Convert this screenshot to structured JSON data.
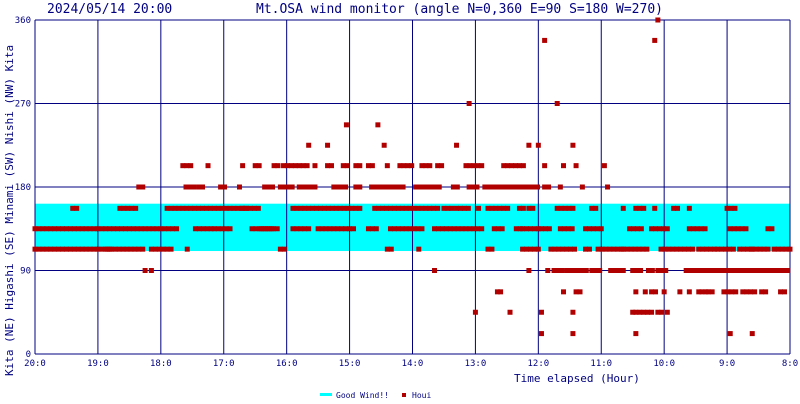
{
  "chart_data": {
    "type": "scatter",
    "timestamp": "2024/05/14 20:00",
    "title": "Mt.OSA wind monitor (angle N=0,360 E=90 S=180 W=270)",
    "xlabel": "Time elapsed (Hour)",
    "ylabel_rotated": "Kita (NE) Higashi (SE) Minami (SW) Nishi (NW) Kita",
    "x_tick_labels": [
      "20:0",
      "19:0",
      "18:0",
      "17:0",
      "16:0",
      "15:0",
      "14:0",
      "13:0",
      "12:0",
      "11:0",
      "10:0",
      "9:0",
      "8:0"
    ],
    "y_tick_labels": [
      "0",
      "90",
      "180",
      "270",
      "360"
    ],
    "xlim_hours_elapsed": [
      0,
      12
    ],
    "ylim": [
      0,
      360
    ],
    "grid": true,
    "good_wind_band": {
      "label": "Good Wind!!",
      "from": 111,
      "to": 162,
      "color": "#00ffff"
    },
    "legend": {
      "placement": "bottom-center",
      "items": [
        {
          "label": "Good Wind!!",
          "color": "#00ffff"
        },
        {
          "label": "Houi",
          "color": "#b00000"
        }
      ]
    },
    "series": [
      {
        "name": "Houi",
        "color": "#b00000",
        "rows": [
          {
            "y": 113,
            "ranges": [
              [
                0.0,
                1.2
              ],
              [
                1.15,
                1.75
              ],
              [
                1.85,
                2.2
              ],
              [
                2.42,
                2.47
              ],
              [
                3.9,
                4.0
              ],
              [
                5.6,
                5.7
              ],
              [
                6.1,
                6.15
              ],
              [
                7.2,
                7.3
              ],
              [
                7.75,
                8.0
              ],
              [
                8.2,
                8.6
              ],
              [
                8.75,
                8.85
              ],
              [
                8.95,
                9.35
              ],
              [
                9.35,
                9.75
              ],
              [
                9.95,
                10.45
              ],
              [
                10.55,
                10.8
              ],
              [
                10.85,
                11.1
              ],
              [
                11.2,
                11.4
              ],
              [
                11.4,
                11.65
              ],
              [
                11.75,
                12.0
              ]
            ]
          },
          {
            "y": 135,
            "ranges": [
              [
                0.0,
                2.3
              ],
              [
                2.55,
                2.8
              ],
              [
                2.85,
                3.15
              ],
              [
                3.45,
                3.8
              ],
              [
                3.6,
                3.85
              ],
              [
                4.1,
                4.4
              ],
              [
                4.5,
                5.1
              ],
              [
                5.3,
                5.45
              ],
              [
                5.65,
                6.15
              ],
              [
                6.35,
                7.1
              ],
              [
                7.3,
                7.45
              ],
              [
                7.65,
                7.75
              ],
              [
                7.75,
                8.0
              ],
              [
                8.05,
                8.2
              ],
              [
                8.35,
                8.55
              ],
              [
                8.75,
                9.05
              ],
              [
                9.45,
                9.65
              ],
              [
                9.8,
                10.05
              ],
              [
                10.4,
                10.7
              ],
              [
                11.05,
                11.3
              ],
              [
                11.65,
                11.75
              ]
            ]
          },
          {
            "y": 157,
            "ranges": [
              [
                0.6,
                0.7
              ],
              [
                1.35,
                1.55
              ],
              [
                1.6,
                1.65
              ],
              [
                2.1,
                3.4
              ],
              [
                3.3,
                3.6
              ],
              [
                4.1,
                5.2
              ],
              [
                5.4,
                6.1
              ],
              [
                6.15,
                6.4
              ],
              [
                6.5,
                6.65
              ],
              [
                6.7,
                6.9
              ],
              [
                7.05,
                7.1
              ],
              [
                7.2,
                7.55
              ],
              [
                7.7,
                7.8
              ],
              [
                7.85,
                7.95
              ],
              [
                8.3,
                8.55
              ],
              [
                8.85,
                8.95
              ],
              [
                9.35,
                9.4
              ],
              [
                9.55,
                9.7
              ],
              [
                9.85,
                9.9
              ],
              [
                10.15,
                10.25
              ],
              [
                10.4,
                10.45
              ],
              [
                11.0,
                11.15
              ]
            ]
          },
          {
            "y": 180,
            "ranges": [
              [
                1.65,
                1.75
              ],
              [
                2.4,
                2.55
              ],
              [
                2.6,
                2.7
              ],
              [
                2.95,
                3.05
              ],
              [
                3.25,
                3.3
              ],
              [
                3.65,
                3.8
              ],
              [
                3.9,
                4.1
              ],
              [
                4.2,
                4.45
              ],
              [
                4.75,
                4.95
              ],
              [
                5.1,
                5.2
              ],
              [
                5.35,
                5.85
              ],
              [
                6.05,
                6.45
              ],
              [
                6.65,
                6.75
              ],
              [
                6.9,
                7.05
              ],
              [
                7.15,
                7.65
              ],
              [
                7.7,
                7.85
              ],
              [
                7.8,
                8.0
              ],
              [
                8.1,
                8.2
              ],
              [
                8.35,
                8.4
              ],
              [
                8.7,
                8.75
              ],
              [
                9.1,
                9.15
              ]
            ]
          },
          {
            "y": 203,
            "ranges": [
              [
                2.35,
                2.5
              ],
              [
                2.75,
                2.8
              ],
              [
                3.3,
                3.35
              ],
              [
                3.5,
                3.6
              ],
              [
                3.8,
                3.9
              ],
              [
                3.95,
                4.15
              ],
              [
                4.2,
                4.35
              ],
              [
                4.45,
                4.5
              ],
              [
                4.65,
                4.75
              ],
              [
                4.9,
                5.0
              ],
              [
                5.1,
                5.2
              ],
              [
                5.3,
                5.4
              ],
              [
                5.6,
                5.65
              ],
              [
                5.8,
                6.0
              ],
              [
                6.15,
                6.3
              ],
              [
                6.4,
                6.5
              ],
              [
                6.85,
                7.1
              ],
              [
                7.45,
                7.8
              ],
              [
                8.1,
                8.15
              ],
              [
                8.4,
                8.45
              ],
              [
                8.6,
                8.65
              ],
              [
                9.05,
                9.1
              ]
            ]
          },
          {
            "y": 225,
            "ranges": [
              [
                4.35,
                4.4
              ],
              [
                4.65,
                4.7
              ],
              [
                5.55,
                5.6
              ],
              [
                6.7,
                6.75
              ],
              [
                7.85,
                7.9
              ],
              [
                8.0,
                8.05
              ],
              [
                8.55,
                8.6
              ]
            ]
          },
          {
            "y": 247,
            "ranges": [
              [
                4.95,
                5.0
              ],
              [
                5.45,
                5.5
              ]
            ]
          },
          {
            "y": 270,
            "ranges": [
              [
                6.9,
                6.95
              ],
              [
                8.3,
                8.35
              ]
            ]
          },
          {
            "y": 90,
            "ranges": [
              [
                1.75,
                1.8
              ],
              [
                1.85,
                1.9
              ],
              [
                6.35,
                6.4
              ],
              [
                7.85,
                7.9
              ],
              [
                8.15,
                8.2
              ],
              [
                8.25,
                8.4
              ],
              [
                8.45,
                8.8
              ],
              [
                8.85,
                9.0
              ],
              [
                9.15,
                9.3
              ],
              [
                9.35,
                9.4
              ],
              [
                9.5,
                9.65
              ],
              [
                9.75,
                9.85
              ],
              [
                9.9,
                10.05
              ],
              [
                10.35,
                10.7
              ],
              [
                10.7,
                11.15
              ],
              [
                11.2,
                11.6
              ],
              [
                11.65,
                12.0
              ]
            ]
          },
          {
            "y": 67,
            "ranges": [
              [
                7.35,
                7.4
              ],
              [
                7.4,
                7.45
              ],
              [
                8.4,
                8.45
              ],
              [
                8.6,
                8.7
              ],
              [
                9.55,
                9.6
              ],
              [
                9.7,
                9.75
              ],
              [
                9.8,
                9.9
              ],
              [
                10.0,
                10.05
              ],
              [
                10.25,
                10.3
              ],
              [
                10.4,
                10.45
              ],
              [
                10.55,
                10.6
              ],
              [
                10.6,
                10.7
              ],
              [
                10.7,
                10.8
              ],
              [
                10.95,
                11.15
              ],
              [
                11.25,
                11.45
              ],
              [
                11.55,
                11.65
              ],
              [
                11.85,
                11.95
              ]
            ]
          },
          {
            "y": 45,
            "ranges": [
              [
                7.0,
                7.05
              ],
              [
                7.55,
                7.6
              ],
              [
                8.05,
                8.1
              ],
              [
                8.55,
                8.6
              ],
              [
                9.5,
                9.55
              ],
              [
                9.55,
                9.85
              ],
              [
                9.9,
                10.0
              ],
              [
                10.05,
                10.1
              ]
            ]
          },
          {
            "y": 22,
            "ranges": [
              [
                8.05,
                8.1
              ],
              [
                8.55,
                8.6
              ],
              [
                9.55,
                9.6
              ],
              [
                11.05,
                11.1
              ],
              [
                11.4,
                11.45
              ]
            ]
          },
          {
            "y": 338,
            "ranges": [
              [
                8.1,
                8.15
              ]
            ]
          },
          {
            "y": 338,
            "ranges": [
              [
                9.85,
                9.9
              ]
            ]
          },
          {
            "y": 360,
            "ranges": [
              [
                9.9,
                9.95
              ]
            ]
          }
        ]
      }
    ]
  }
}
